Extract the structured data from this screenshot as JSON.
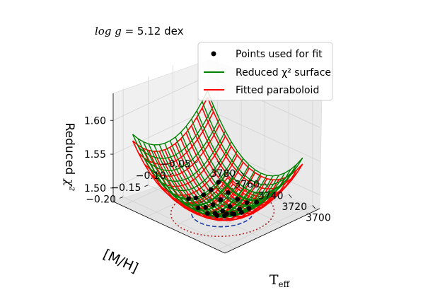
{
  "chart_data": {
    "type": "surface3d",
    "title": "log g = 5.12 dex",
    "title_parts": {
      "math": "log g",
      "rest": " = 5.12 dex"
    },
    "legend": {
      "placement": "top-right",
      "entries": [
        {
          "label": "Points used for fit",
          "marker": "point",
          "color": "#000000"
        },
        {
          "label": "Reduced χ² surface",
          "marker": "line",
          "color": "#008000"
        },
        {
          "label": "Fitted paraboloid",
          "marker": "line",
          "color": "#ff0000"
        }
      ]
    },
    "axes": {
      "teff": {
        "label": "Teff",
        "label_main": "T",
        "label_sub": "eff",
        "ticks": [
          "3700",
          "3720",
          "3740",
          "3760",
          "3780"
        ],
        "range": [
          3694,
          3788
        ]
      },
      "mh": {
        "label": "[M/H]",
        "ticks": [
          "−0.20",
          "−0.15",
          "−0.10",
          "−0.05"
        ],
        "range": [
          -0.22,
          -0.03
        ]
      },
      "chi2": {
        "label": "Reduced χ²",
        "label_main": "Reduced",
        "label_math": "χ²",
        "ticks": [
          "1.50",
          "1.55",
          "1.60"
        ],
        "range": [
          1.48,
          1.64
        ]
      }
    },
    "surface_model": {
      "description_values": {
        "min_chi2": 1.47,
        "teff_min": 3738,
        "mh_min": -0.12
      },
      "contours": [
        {
          "style": "solid",
          "color": "#17a589"
        },
        {
          "style": "dashed",
          "color": "#1f3fa8"
        },
        {
          "style": "dotted",
          "color": "#b22222"
        }
      ]
    },
    "grid": true
  }
}
